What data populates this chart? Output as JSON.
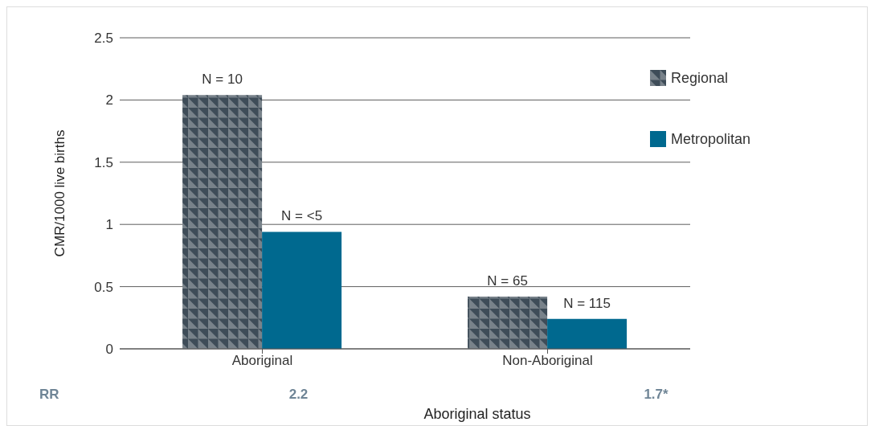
{
  "chart_data": {
    "type": "bar",
    "xlabel": "Aboriginal status",
    "ylabel": "CMR/1000 live births",
    "categories": [
      "Aboriginal",
      "Non-Aboriginal"
    ],
    "series": [
      {
        "name": "Regional",
        "color": "#3e4c58",
        "values": [
          2.04,
          0.42
        ]
      },
      {
        "name": "Metropolitan",
        "color": "#00698f",
        "values": [
          0.94,
          0.24
        ]
      }
    ],
    "ylim": [
      0,
      2.5
    ],
    "yticks": [
      0,
      0.5,
      1,
      1.5,
      2,
      2.5
    ],
    "grid": "y",
    "legend": "top right",
    "annotations": [
      {
        "text": "N = 10",
        "x": "Aboriginal",
        "y": 2.04
      },
      {
        "text": "N = <5",
        "x": "Aboriginal",
        "y": 0.94
      },
      {
        "text": "N = 65",
        "x": "Non-Aboriginal",
        "y": 0.42
      },
      {
        "text": "N = 115",
        "x": "Non-Aboriginal",
        "y": 0.24
      },
      "RR",
      "2.2",
      "1.7*"
    ]
  }
}
